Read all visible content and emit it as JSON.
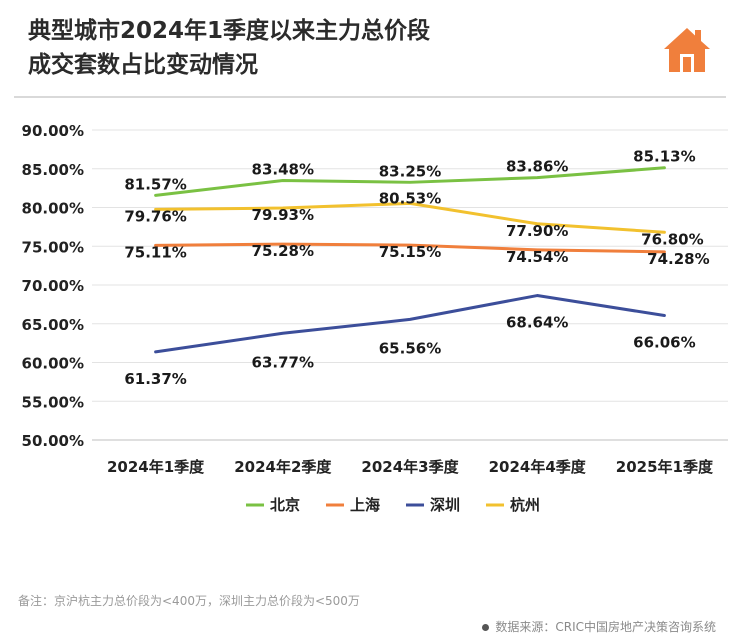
{
  "header": {
    "title_line1": "典型城市2024年1季度以来主力总价段",
    "title_line2": "成交套数占比变动情况"
  },
  "logo": {
    "icon": "house-icon",
    "color": "#F07F3C"
  },
  "chart_data": {
    "type": "line",
    "categories": [
      "2024年1季度",
      "2024年2季度",
      "2024年3季度",
      "2024年4季度",
      "2025年1季度"
    ],
    "ylim": [
      50,
      90
    ],
    "yticks": [
      50,
      55,
      60,
      65,
      70,
      75,
      80,
      85,
      90
    ],
    "ytick_labels": [
      "50.00%",
      "55.00%",
      "60.00%",
      "65.00%",
      "70.00%",
      "75.00%",
      "80.00%",
      "85.00%",
      "90.00%"
    ],
    "grid": true,
    "legend_position": "bottom",
    "series": [
      {
        "name": "北京",
        "color": "#7AC143",
        "values": [
          81.57,
          83.48,
          83.25,
          83.86,
          85.13
        ],
        "labels": [
          "81.57%",
          "83.48%",
          "83.25%",
          "83.86%",
          "85.13%"
        ]
      },
      {
        "name": "上海",
        "color": "#F07F3C",
        "values": [
          75.11,
          75.28,
          75.15,
          74.54,
          74.28
        ],
        "labels": [
          "75.11%",
          "75.28%",
          "75.15%",
          "74.54%",
          "74.28%"
        ]
      },
      {
        "name": "深圳",
        "color": "#3C4E9A",
        "values": [
          61.37,
          63.77,
          65.56,
          68.64,
          66.06
        ],
        "labels": [
          "61.37%",
          "63.77%",
          "65.56%",
          "68.64%",
          "66.06%"
        ]
      },
      {
        "name": "杭州",
        "color": "#F2C12E",
        "values": [
          79.76,
          79.93,
          80.53,
          77.9,
          76.8
        ],
        "labels": [
          "79.76%",
          "79.93%",
          "80.53%",
          "77.90%",
          "76.80%"
        ]
      }
    ]
  },
  "footer": {
    "note": "备注：京沪杭主力总价段为<400万，深圳主力总价段为<500万",
    "source": "数据来源：CRIC中国房地产决策咨询系统"
  }
}
